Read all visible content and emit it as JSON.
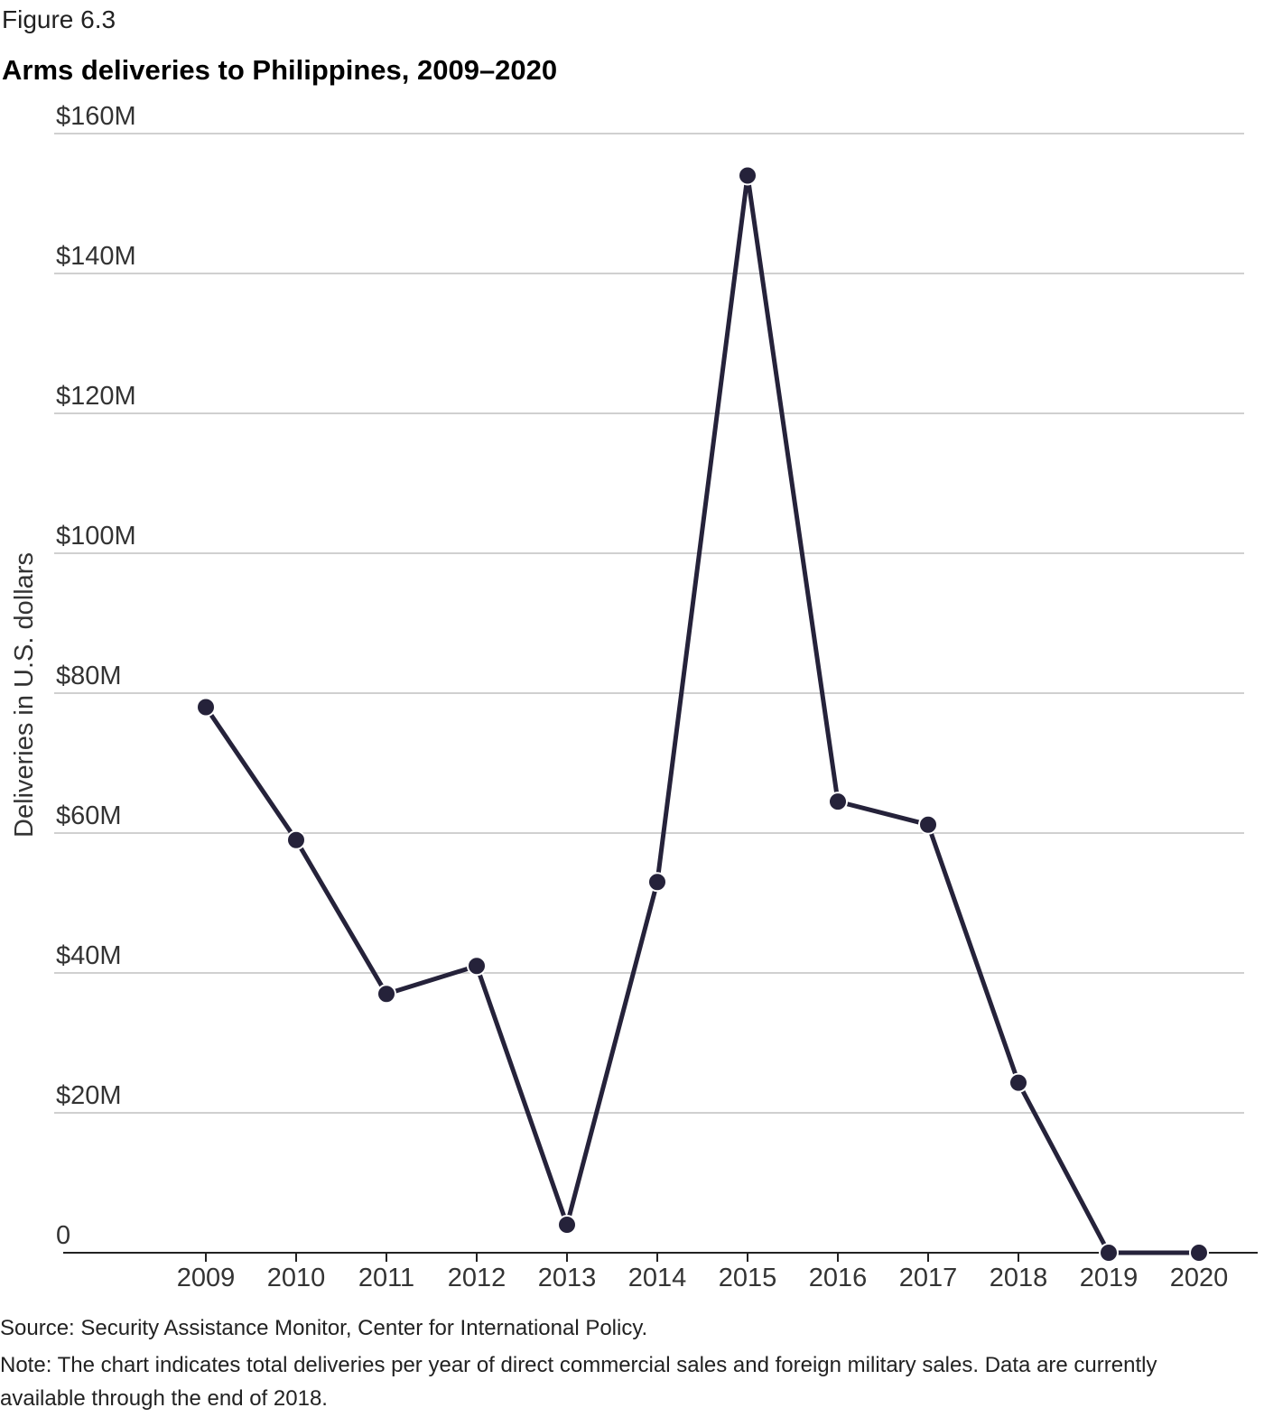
{
  "figure_label": "Figure 6.3",
  "chart_data": {
    "type": "line",
    "title": "Arms deliveries to Philippines, 2009–2020",
    "y_label": "Deliveries in U.S. dollars",
    "categories": [
      "2009",
      "2010",
      "2011",
      "2012",
      "2013",
      "2014",
      "2015",
      "2016",
      "2017",
      "2018",
      "2019",
      "2020"
    ],
    "series": [
      {
        "name": "Deliveries",
        "color": "#25223a",
        "values": [
          78000000,
          59000000,
          37000000,
          41000000,
          4000000,
          53000000,
          154000000,
          64500000,
          61200000,
          24300000,
          0,
          0
        ]
      }
    ],
    "ylim": [
      0,
      160000000
    ],
    "yticks": [
      0,
      {
        "value": 20000000,
        "label": "$20M"
      },
      {
        "value": 40000000,
        "label": "$40M"
      },
      {
        "value": 60000000,
        "label": "$60M"
      },
      {
        "value": 80000000,
        "label": "$80M"
      },
      {
        "value": 100000000,
        "label": "$100M"
      },
      {
        "value": 120000000,
        "label": "$120M"
      },
      {
        "value": 140000000,
        "label": "$140M"
      },
      {
        "value": 160000000,
        "label": "$160M"
      }
    ],
    "grid": true
  },
  "source": "Source: Security Assistance Monitor, Center for International Policy.",
  "note": "Note: The chart indicates total deliveries per year of direct commercial sales and foreign military sales. Data are currently available through the end of 2018."
}
